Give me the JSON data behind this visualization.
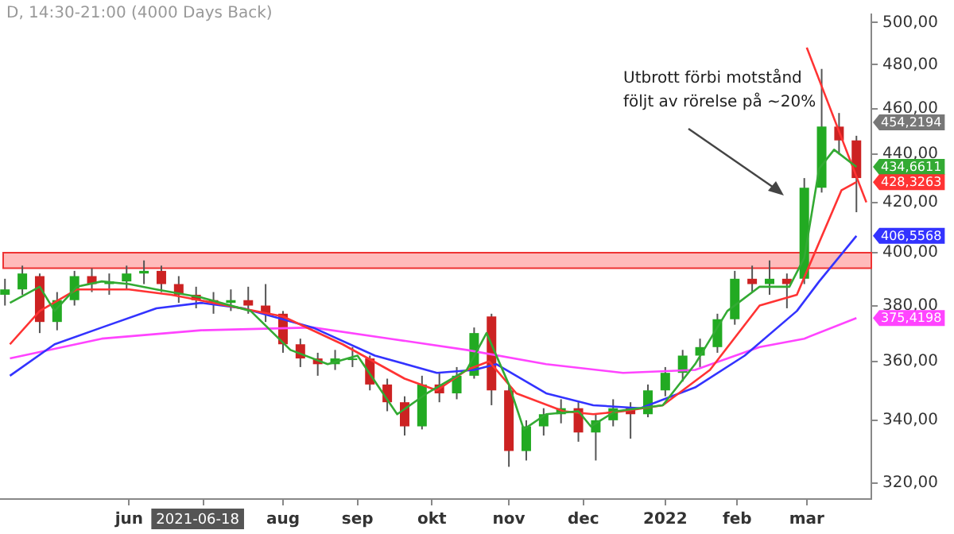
{
  "chart_data": {
    "type": "candlestick",
    "title": "D, 14:30-21:00 (4000 Days Back)",
    "x": [
      "2021-04-12",
      "2021-04-19",
      "2021-04-26",
      "2021-05-03",
      "2021-05-10",
      "2021-05-17",
      "2021-05-24",
      "2021-05-31",
      "2021-06-07",
      "2021-06-14",
      "2021-06-21",
      "2021-06-28",
      "2021-07-05",
      "2021-07-12",
      "2021-07-19",
      "2021-07-26",
      "2021-08-02",
      "2021-08-09",
      "2021-08-16",
      "2021-08-23",
      "2021-08-30",
      "2021-09-06",
      "2021-09-13",
      "2021-09-20",
      "2021-09-27",
      "2021-10-04",
      "2021-10-11",
      "2021-10-18",
      "2021-10-25",
      "2021-11-01",
      "2021-11-08",
      "2021-11-15",
      "2021-11-22",
      "2021-11-29",
      "2021-12-06",
      "2021-12-13",
      "2021-12-20",
      "2021-12-27",
      "2022-01-03",
      "2022-01-10",
      "2022-01-17",
      "2022-01-24",
      "2022-01-31",
      "2022-02-07",
      "2022-02-14",
      "2022-02-21",
      "2022-02-28",
      "2022-03-07",
      "2022-03-14",
      "2022-03-21"
    ],
    "ohlc": [
      [
        384,
        390,
        380,
        386
      ],
      [
        386,
        395,
        384,
        392
      ],
      [
        391,
        392,
        370,
        374
      ],
      [
        374,
        385,
        371,
        382
      ],
      [
        382,
        393,
        380,
        391
      ],
      [
        391,
        394,
        385,
        388
      ],
      [
        388,
        392,
        384,
        389
      ],
      [
        389,
        395,
        386,
        392
      ],
      [
        392,
        397,
        388,
        393
      ],
      [
        393,
        395,
        385,
        388
      ],
      [
        388,
        391,
        381,
        384
      ],
      [
        384,
        387,
        379,
        382
      ],
      [
        382,
        385,
        377,
        381
      ],
      [
        381,
        386,
        378,
        382
      ],
      [
        382,
        387,
        377,
        380
      ],
      [
        380,
        388,
        374,
        377
      ],
      [
        377,
        378,
        363,
        366
      ],
      [
        366,
        368,
        358,
        361
      ],
      [
        361,
        363,
        355,
        359
      ],
      [
        359,
        364,
        357,
        361
      ],
      [
        361,
        365,
        358,
        361
      ],
      [
        361,
        362,
        350,
        352
      ],
      [
        352,
        354,
        343,
        346
      ],
      [
        346,
        348,
        335,
        338
      ],
      [
        338,
        355,
        337,
        352
      ],
      [
        352,
        356,
        346,
        349
      ],
      [
        349,
        358,
        347,
        355
      ],
      [
        355,
        372,
        354,
        370
      ],
      [
        376,
        377,
        345,
        350
      ],
      [
        350,
        352,
        325,
        330
      ],
      [
        330,
        340,
        327,
        338
      ],
      [
        338,
        344,
        335,
        342
      ],
      [
        342,
        347,
        339,
        344
      ],
      [
        344,
        346,
        333,
        336
      ],
      [
        336,
        342,
        327,
        340
      ],
      [
        340,
        347,
        338,
        344
      ],
      [
        344,
        346,
        334,
        342
      ],
      [
        342,
        352,
        341,
        350
      ],
      [
        350,
        358,
        348,
        356
      ],
      [
        356,
        364,
        353,
        362
      ],
      [
        362,
        368,
        358,
        365
      ],
      [
        365,
        377,
        363,
        375
      ],
      [
        375,
        393,
        373,
        390
      ],
      [
        390,
        395,
        385,
        388
      ],
      [
        388,
        397,
        384,
        390
      ],
      [
        390,
        392,
        379,
        388
      ],
      [
        390,
        430,
        388,
        426
      ],
      [
        426,
        478,
        424,
        452
      ],
      [
        452,
        458,
        440,
        446
      ],
      [
        446,
        448,
        416,
        430
      ]
    ],
    "series": [
      {
        "type": "line",
        "color": "#33aa33",
        "x": [
          "2021-04-14",
          "2021-04-26",
          "2021-05-02",
          "2021-05-11",
          "2021-05-21",
          "2021-06-01",
          "2021-06-12",
          "2021-06-30",
          "2021-07-20",
          "2021-08-05",
          "2021-08-20",
          "2021-09-01",
          "2021-09-17",
          "2021-09-29",
          "2021-10-15",
          "2021-10-23",
          "2021-11-01",
          "2021-11-07",
          "2021-11-16",
          "2021-11-29",
          "2021-12-04",
          "2021-12-14",
          "2022-01-02",
          "2022-01-15",
          "2022-01-28",
          "2022-02-10",
          "2022-02-22",
          "2022-02-28",
          "2022-03-06",
          "2022-03-12",
          "2022-03-21"
        ],
        "values": [
          381,
          387,
          378,
          387,
          389,
          388,
          386,
          383,
          378,
          364,
          359,
          362,
          342,
          349,
          357,
          370,
          352,
          337,
          342,
          343,
          338,
          343,
          345,
          359,
          378,
          387,
          387,
          398,
          434,
          442,
          434.6611
        ]
      },
      {
        "type": "line",
        "color": "#ff3333",
        "x": [
          "2021-04-14",
          "2021-04-26",
          "2021-05-11",
          "2021-06-01",
          "2021-06-18",
          "2021-07-05",
          "2021-08-02",
          "2021-08-26",
          "2021-09-20",
          "2021-10-03",
          "2021-10-15",
          "2021-10-24",
          "2021-11-04",
          "2021-11-23",
          "2021-12-05",
          "2021-12-17",
          "2022-01-02",
          "2022-01-21",
          "2022-02-10",
          "2022-02-25",
          "2022-03-06",
          "2022-03-15",
          "2022-03-21"
        ],
        "values": [
          366,
          378,
          386,
          386,
          384,
          381,
          376,
          366,
          354,
          350,
          357,
          360,
          349,
          343,
          342,
          343,
          345,
          357,
          380,
          384,
          404,
          425,
          428.3263
        ]
      },
      {
        "type": "line",
        "color": "#3333ff",
        "x": [
          "2021-04-14",
          "2021-05-02",
          "2021-05-21",
          "2021-06-12",
          "2021-06-30",
          "2021-07-17",
          "2021-08-14",
          "2021-09-08",
          "2021-10-03",
          "2021-10-18",
          "2021-10-27",
          "2021-11-16",
          "2021-12-05",
          "2021-12-24",
          "2022-01-15",
          "2022-02-04",
          "2022-02-25",
          "2022-03-06",
          "2022-03-21"
        ],
        "values": [
          355,
          366,
          372,
          379,
          381,
          379,
          372,
          362,
          356,
          357,
          359,
          349,
          345,
          344,
          351,
          362,
          378,
          389,
          406.5568
        ]
      },
      {
        "type": "line",
        "color": "#ff44ff",
        "x": [
          "2021-04-14",
          "2021-05-21",
          "2021-06-30",
          "2021-08-14",
          "2021-09-14",
          "2021-10-15",
          "2021-11-16",
          "2021-12-17",
          "2022-01-15",
          "2022-02-10",
          "2022-02-28",
          "2022-03-21"
        ],
        "values": [
          361,
          368,
          371,
          372,
          368,
          364,
          359,
          356,
          357,
          365,
          368,
          375.4198
        ]
      },
      {
        "type": "line",
        "color": "#ff3333",
        "x": [
          "2022-03-01",
          "2022-03-25"
        ],
        "values": [
          488,
          420
        ]
      }
    ],
    "bands": [
      {
        "axis": "y",
        "from": 394,
        "to": 400,
        "color": "#ff8080"
      }
    ],
    "annotations": [
      "Utbrott förbi motstånd\nföljt av rörelse på ~20%",
      "2021-06-18",
      "454,2194",
      "434,6611",
      "428,3263",
      "406,5568",
      "375,4198"
    ],
    "log": "y",
    "xlim": [
      "2021-04-10",
      "2022-03-27"
    ],
    "ylim": [
      315,
      504
    ],
    "xticks": [
      {
        "value": "2021-06-01",
        "label": "jun"
      },
      {
        "value": "2021-07-01",
        "label": null
      },
      {
        "value": "2021-08-02",
        "label": "aug"
      },
      {
        "value": "2021-09-01",
        "label": "sep"
      },
      {
        "value": "2021-10-01",
        "label": "okt"
      },
      {
        "value": "2021-11-01",
        "label": "nov"
      },
      {
        "value": "2021-12-01",
        "label": "dec"
      },
      {
        "value": "2022-01-03",
        "label": "2022"
      },
      {
        "value": "2022-02-01",
        "label": "feb"
      },
      {
        "value": "2022-03-01",
        "label": "mar"
      }
    ],
    "yticks": [
      {
        "value": 320,
        "label": "320,00"
      },
      {
        "value": 340,
        "label": "340,00"
      },
      {
        "value": 360,
        "label": "360,00"
      },
      {
        "value": 380,
        "label": "380,00"
      },
      {
        "value": 400,
        "label": "400,00"
      },
      {
        "value": 420,
        "label": "420,00"
      },
      {
        "value": 440,
        "label": "440,00"
      },
      {
        "value": 460,
        "label": "460,00"
      },
      {
        "value": 480,
        "label": "480,00"
      },
      {
        "value": 500,
        "label": "500,00"
      }
    ],
    "grid": false,
    "legend": false,
    "marker": "none",
    "line_style": "solid"
  }
}
